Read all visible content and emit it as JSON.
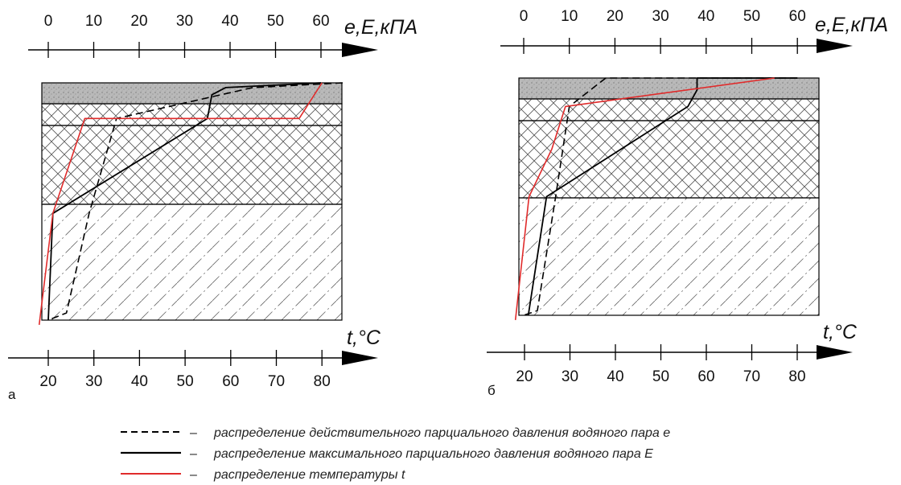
{
  "legend": {
    "dash_symbol": "–",
    "items": [
      {
        "key": "e",
        "text": "распределение действительного парциального давления водяного пара е",
        "style": "dashed",
        "color": "#000000"
      },
      {
        "key": "E",
        "text": "распределение максимального парциального давления водяного пара Е",
        "style": "solid",
        "color": "#000000"
      },
      {
        "key": "t",
        "text": "распределение температуры t",
        "style": "solid",
        "color": "#e02b2b"
      }
    ]
  },
  "colors": {
    "ink": "#000000",
    "temperature": "#e02b2b",
    "concrete_fill": "#b9b9b9",
    "hatch": "#555555"
  },
  "chart_data": [
    {
      "type": "line",
      "panel_label": "а",
      "top_axis": {
        "title": "e,E,кПА",
        "ticks": [
          "0",
          "10",
          "20",
          "30",
          "40",
          "50",
          "60"
        ],
        "range": [
          0,
          60
        ]
      },
      "bottom_axis": {
        "title": "t,°C",
        "ticks": [
          "20",
          "30",
          "40",
          "50",
          "60",
          "70",
          "80"
        ],
        "range": [
          20,
          80
        ]
      },
      "layers_top_to_bottom": [
        "concrete",
        "crosshatch",
        "crosshatch",
        "diagonal-dashdot"
      ],
      "series": [
        {
          "key": "e",
          "style": "dashed",
          "axis": "top",
          "points": [
            [
              65,
              0.0
            ],
            [
              45,
              0.02
            ],
            [
              38,
              0.05
            ],
            [
              15,
              0.15
            ],
            [
              9,
              0.55
            ],
            [
              4,
              0.97
            ],
            [
              0,
              1.0
            ]
          ]
        },
        {
          "key": "E",
          "style": "solid",
          "axis": "top",
          "points": [
            [
              60,
              0.0
            ],
            [
              39,
              0.02
            ],
            [
              36,
              0.05
            ],
            [
              35,
              0.15
            ],
            [
              1,
              0.55
            ],
            [
              0,
              1.0
            ]
          ]
        },
        {
          "key": "t",
          "style": "solid",
          "axis": "bottom",
          "points": [
            [
              80,
              0.0
            ],
            [
              75,
              0.15
            ],
            [
              28,
              0.15
            ],
            [
              21,
              0.55
            ],
            [
              18,
              1.02
            ]
          ]
        }
      ]
    },
    {
      "type": "line",
      "panel_label": "б",
      "top_axis": {
        "title": "e,E,кПА",
        "ticks": [
          "0",
          "10",
          "20",
          "30",
          "40",
          "50",
          "60"
        ],
        "range": [
          0,
          60
        ]
      },
      "bottom_axis": {
        "title": "t,°C",
        "ticks": [
          "20",
          "30",
          "40",
          "50",
          "60",
          "70",
          "80"
        ],
        "range": [
          20,
          80
        ]
      },
      "layers_top_to_bottom": [
        "concrete",
        "crosshatch",
        "crosshatch",
        "diagonal-dashdot"
      ],
      "series": [
        {
          "key": "e",
          "style": "dashed",
          "axis": "top",
          "points": [
            [
              60,
              0.0
            ],
            [
              18,
              0.0
            ],
            [
              16,
              0.03
            ],
            [
              10,
              0.12
            ],
            [
              7,
              0.5
            ],
            [
              3,
              0.98
            ],
            [
              0,
              1.0
            ]
          ]
        },
        {
          "key": "E",
          "style": "solid",
          "axis": "top",
          "points": [
            [
              60,
              0.0
            ],
            [
              38,
              0.0
            ],
            [
              38,
              0.05
            ],
            [
              36,
              0.12
            ],
            [
              5,
              0.5
            ],
            [
              1,
              1.0
            ]
          ]
        },
        {
          "key": "t",
          "style": "solid",
          "axis": "bottom",
          "points": [
            [
              75,
              0.0
            ],
            [
              29,
              0.12
            ],
            [
              26,
              0.3
            ],
            [
              21,
              0.5
            ],
            [
              18,
              1.02
            ]
          ]
        }
      ]
    }
  ]
}
